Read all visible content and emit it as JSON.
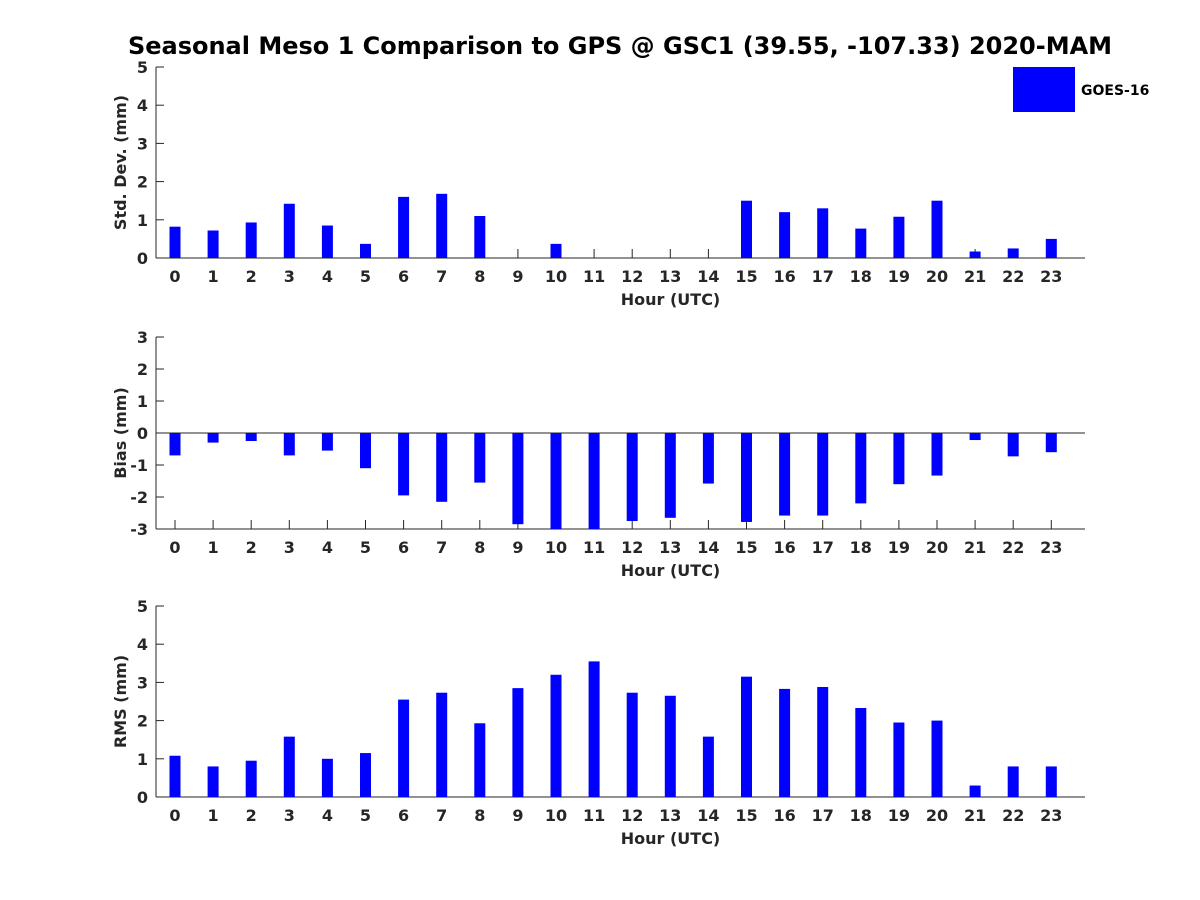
{
  "figure": {
    "title": "Seasonal Meso 1 Comparison to GPS @ GSC1 (39.55, -107.33) 2020-MAM",
    "legend": {
      "label": "GOES-16",
      "color": "#0000ff",
      "placement": "top-right"
    }
  },
  "chart_data": [
    {
      "type": "bar",
      "title": "Seasonal Meso 1 Comparison to GPS @ GSC1 (39.55, -107.33) 2020-MAM",
      "xlabel": "Hour (UTC)",
      "ylabel": "Std. Dev. (mm)",
      "ylim": [
        0,
        5
      ],
      "yticks": [
        0,
        1,
        2,
        3,
        4,
        5
      ],
      "grid": false,
      "categories": [
        "0",
        "1",
        "2",
        "3",
        "4",
        "5",
        "6",
        "7",
        "8",
        "9",
        "10",
        "11",
        "12",
        "13",
        "14",
        "15",
        "16",
        "17",
        "18",
        "19",
        "20",
        "21",
        "22",
        "23"
      ],
      "series": [
        {
          "name": "GOES-16",
          "color": "#0000ff",
          "values": [
            0.82,
            0.72,
            0.93,
            1.42,
            0.85,
            0.37,
            1.6,
            1.68,
            1.1,
            0.0,
            0.37,
            0.0,
            0.0,
            0.0,
            0.0,
            1.5,
            1.2,
            1.3,
            0.77,
            1.08,
            1.5,
            0.17,
            0.25,
            0.5
          ]
        }
      ]
    },
    {
      "type": "bar",
      "xlabel": "Hour (UTC)",
      "ylabel": "Bias (mm)",
      "ylim": [
        -3,
        3
      ],
      "yticks": [
        -3,
        -2,
        -1,
        0,
        1,
        2,
        3
      ],
      "grid": false,
      "categories": [
        "0",
        "1",
        "2",
        "3",
        "4",
        "5",
        "6",
        "7",
        "8",
        "9",
        "10",
        "11",
        "12",
        "13",
        "14",
        "15",
        "16",
        "17",
        "18",
        "19",
        "20",
        "21",
        "22",
        "23"
      ],
      "series": [
        {
          "name": "GOES-16",
          "color": "#0000ff",
          "values": [
            -0.7,
            -0.3,
            -0.25,
            -0.7,
            -0.55,
            -1.1,
            -1.95,
            -2.15,
            -1.55,
            -2.85,
            -3.0,
            -3.0,
            -2.75,
            -2.65,
            -1.58,
            -2.78,
            -2.58,
            -2.58,
            -2.2,
            -1.6,
            -1.33,
            -0.22,
            -0.73,
            -0.6
          ]
        }
      ]
    },
    {
      "type": "bar",
      "xlabel": "Hour (UTC)",
      "ylabel": "RMS (mm)",
      "ylim": [
        0,
        5
      ],
      "yticks": [
        0,
        1,
        2,
        3,
        4,
        5
      ],
      "grid": false,
      "categories": [
        "0",
        "1",
        "2",
        "3",
        "4",
        "5",
        "6",
        "7",
        "8",
        "9",
        "10",
        "11",
        "12",
        "13",
        "14",
        "15",
        "16",
        "17",
        "18",
        "19",
        "20",
        "21",
        "22",
        "23"
      ],
      "series": [
        {
          "name": "GOES-16",
          "color": "#0000ff",
          "values": [
            1.08,
            0.8,
            0.95,
            1.58,
            1.0,
            1.15,
            2.55,
            2.73,
            1.93,
            2.85,
            3.2,
            3.55,
            2.73,
            2.65,
            1.58,
            3.15,
            2.83,
            2.88,
            2.33,
            1.95,
            2.0,
            0.3,
            0.8,
            0.8
          ]
        }
      ]
    }
  ]
}
